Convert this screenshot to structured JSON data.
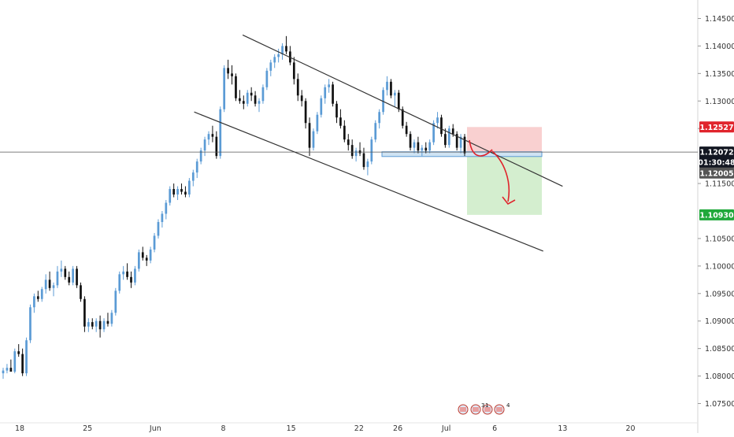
{
  "chart_data": {
    "type": "candlestick",
    "x_ticks": [
      "18",
      "25",
      "Jun",
      "8",
      "15",
      "22",
      "26",
      "Jul",
      "6",
      "13",
      "20"
    ],
    "y_ticks": [
      "1.14500",
      "1.14000",
      "1.13500",
      "1.13000",
      "1.12500",
      "1.11500",
      "1.10500",
      "1.10000",
      "1.09500",
      "1.09000",
      "1.08500",
      "1.08000",
      "1.07500"
    ],
    "ylim": [
      1.0735,
      1.1475
    ],
    "price_labels": {
      "stop": "1.12527",
      "current": "1.12072",
      "countdown": "01:30:48",
      "entry": "1.12005",
      "target": "1.10930"
    },
    "event_markers": {
      "first_count": "3",
      "second_count": "1",
      "third_count": "4"
    },
    "colors": {
      "up": "#5b9bd5",
      "down": "#111111",
      "channel": "#333333",
      "risk_zone": "#f8c8c8",
      "reward_zone": "#cdebc7",
      "arrow": "#e0242c",
      "stop_label": "#e0242c",
      "current_label": "#131722",
      "entry_label": "#555555",
      "target_label": "#1fa83a"
    },
    "channel_lines": [
      {
        "from": [
          "2020-06-10",
          1.142
        ],
        "to": [
          "2020-07-13",
          1.1145
        ]
      },
      {
        "from": [
          "2020-06-05",
          1.128
        ],
        "to": [
          "2020-07-11",
          1.1027
        ]
      }
    ],
    "candles": [
      [
        1.0805,
        1.0815,
        1.0795,
        1.081
      ],
      [
        1.081,
        1.0822,
        1.0805,
        1.0815
      ],
      [
        1.0815,
        1.083,
        1.081,
        1.0808
      ],
      [
        1.0808,
        1.085,
        1.0805,
        1.0845
      ],
      [
        1.0845,
        1.0858,
        1.0835,
        1.084
      ],
      [
        1.084,
        1.085,
        1.08,
        1.0805
      ],
      [
        1.0805,
        1.087,
        1.08,
        1.0865
      ],
      [
        1.0865,
        1.093,
        1.086,
        1.0925
      ],
      [
        1.0925,
        1.095,
        1.0915,
        1.0945
      ],
      [
        1.0945,
        1.0955,
        1.0935,
        1.094
      ],
      [
        1.094,
        1.0962,
        1.0935,
        1.0958
      ],
      [
        1.0958,
        1.0985,
        1.095,
        1.0975
      ],
      [
        1.0975,
        1.099,
        1.0955,
        1.096
      ],
      [
        1.096,
        1.097,
        1.0945,
        1.0965
      ],
      [
        1.0965,
        1.1,
        1.096,
        1.099
      ],
      [
        1.099,
        1.101,
        1.098,
        1.0995
      ],
      [
        1.0995,
        1.1,
        1.0975,
        1.098
      ],
      [
        1.098,
        1.099,
        1.0965,
        1.097
      ],
      [
        1.097,
        1.1,
        1.0965,
        1.0995
      ],
      [
        1.0995,
        1.1,
        1.096,
        1.0965
      ],
      [
        1.0965,
        1.097,
        1.0935,
        1.094
      ],
      [
        1.094,
        1.0945,
        1.088,
        1.089
      ],
      [
        1.089,
        1.0905,
        1.088,
        1.0898
      ],
      [
        1.0898,
        1.0905,
        1.0885,
        1.089
      ],
      [
        1.089,
        1.0905,
        1.088,
        1.09
      ],
      [
        1.09,
        1.091,
        1.087,
        1.0885
      ],
      [
        1.0885,
        1.0905,
        1.088,
        1.09
      ],
      [
        1.09,
        1.0915,
        1.089,
        1.0895
      ],
      [
        1.0895,
        1.092,
        1.089,
        1.0915
      ],
      [
        1.0915,
        1.096,
        1.091,
        1.0955
      ],
      [
        1.0955,
        1.099,
        1.095,
        1.0985
      ],
      [
        1.0985,
        1.1,
        1.0975,
        1.099
      ],
      [
        1.099,
        1.1005,
        1.0975,
        1.098
      ],
      [
        1.098,
        1.099,
        1.096,
        1.097
      ],
      [
        1.097,
        1.1,
        1.0965,
        1.0995
      ],
      [
        1.0995,
        1.103,
        1.099,
        1.1025
      ],
      [
        1.1025,
        1.1035,
        1.101,
        1.1015
      ],
      [
        1.1015,
        1.102,
        1.1,
        1.101
      ],
      [
        1.101,
        1.1035,
        1.1005,
        1.103
      ],
      [
        1.103,
        1.106,
        1.1025,
        1.1055
      ],
      [
        1.1055,
        1.1085,
        1.105,
        1.108
      ],
      [
        1.108,
        1.11,
        1.107,
        1.1095
      ],
      [
        1.1095,
        1.112,
        1.1085,
        1.1115
      ],
      [
        1.1115,
        1.1145,
        1.111,
        1.114
      ],
      [
        1.114,
        1.115,
        1.1125,
        1.113
      ],
      [
        1.113,
        1.1145,
        1.112,
        1.114
      ],
      [
        1.114,
        1.115,
        1.113,
        1.1135
      ],
      [
        1.1135,
        1.1145,
        1.1125,
        1.113
      ],
      [
        1.113,
        1.116,
        1.1125,
        1.1155
      ],
      [
        1.1155,
        1.1175,
        1.1145,
        1.117
      ],
      [
        1.117,
        1.1195,
        1.116,
        1.119
      ],
      [
        1.119,
        1.1215,
        1.1185,
        1.121
      ],
      [
        1.121,
        1.1235,
        1.12,
        1.123
      ],
      [
        1.123,
        1.1245,
        1.122,
        1.124
      ],
      [
        1.124,
        1.1255,
        1.1225,
        1.1235
      ],
      [
        1.1235,
        1.1245,
        1.1195,
        1.12
      ],
      [
        1.12,
        1.129,
        1.1195,
        1.1285
      ],
      [
        1.1285,
        1.1365,
        1.128,
        1.136
      ],
      [
        1.136,
        1.1375,
        1.134,
        1.135
      ],
      [
        1.135,
        1.1365,
        1.133,
        1.1345
      ],
      [
        1.1345,
        1.135,
        1.13,
        1.1305
      ],
      [
        1.1305,
        1.132,
        1.1295,
        1.13
      ],
      [
        1.13,
        1.131,
        1.1285,
        1.1295
      ],
      [
        1.1295,
        1.132,
        1.129,
        1.1315
      ],
      [
        1.1315,
        1.1325,
        1.13,
        1.131
      ],
      [
        1.131,
        1.1318,
        1.129,
        1.1295
      ],
      [
        1.1295,
        1.1305,
        1.128,
        1.13
      ],
      [
        1.13,
        1.133,
        1.1295,
        1.1325
      ],
      [
        1.1325,
        1.136,
        1.132,
        1.1355
      ],
      [
        1.1355,
        1.1375,
        1.1345,
        1.137
      ],
      [
        1.137,
        1.1385,
        1.136,
        1.138
      ],
      [
        1.138,
        1.1395,
        1.137,
        1.1385
      ],
      [
        1.1385,
        1.1405,
        1.1375,
        1.14
      ],
      [
        1.14,
        1.1418,
        1.1385,
        1.139
      ],
      [
        1.139,
        1.14,
        1.1365,
        1.137
      ],
      [
        1.137,
        1.138,
        1.133,
        1.134
      ],
      [
        1.134,
        1.135,
        1.13,
        1.131
      ],
      [
        1.131,
        1.132,
        1.129,
        1.13
      ],
      [
        1.13,
        1.1305,
        1.125,
        1.126
      ],
      [
        1.126,
        1.127,
        1.12,
        1.1215
      ],
      [
        1.1215,
        1.125,
        1.121,
        1.1245
      ],
      [
        1.1245,
        1.128,
        1.124,
        1.1275
      ],
      [
        1.1275,
        1.131,
        1.127,
        1.1305
      ],
      [
        1.1305,
        1.133,
        1.1295,
        1.1325
      ],
      [
        1.1325,
        1.134,
        1.1315,
        1.133
      ],
      [
        1.133,
        1.1335,
        1.129,
        1.1295
      ],
      [
        1.1295,
        1.13,
        1.126,
        1.127
      ],
      [
        1.127,
        1.1285,
        1.125,
        1.1255
      ],
      [
        1.1255,
        1.1265,
        1.1225,
        1.123
      ],
      [
        1.123,
        1.124,
        1.121,
        1.122
      ],
      [
        1.122,
        1.123,
        1.1195,
        1.12
      ],
      [
        1.12,
        1.1215,
        1.119,
        1.121
      ],
      [
        1.121,
        1.1225,
        1.12,
        1.1205
      ],
      [
        1.1205,
        1.1215,
        1.1175,
        1.118
      ],
      [
        1.118,
        1.1195,
        1.1165,
        1.119
      ],
      [
        1.119,
        1.1235,
        1.1185,
        1.123
      ],
      [
        1.123,
        1.1265,
        1.1225,
        1.126
      ],
      [
        1.126,
        1.1285,
        1.125,
        1.128
      ],
      [
        1.128,
        1.1325,
        1.1275,
        1.132
      ],
      [
        1.132,
        1.1345,
        1.131,
        1.1335
      ],
      [
        1.1335,
        1.134,
        1.1305,
        1.131
      ],
      [
        1.131,
        1.132,
        1.129,
        1.1315
      ],
      [
        1.1315,
        1.132,
        1.128,
        1.1285
      ],
      [
        1.1285,
        1.129,
        1.125,
        1.1255
      ],
      [
        1.1255,
        1.1262,
        1.1235,
        1.124
      ],
      [
        1.124,
        1.1245,
        1.121,
        1.1215
      ],
      [
        1.1215,
        1.123,
        1.1205,
        1.1225
      ],
      [
        1.1225,
        1.1235,
        1.1205,
        1.121
      ],
      [
        1.121,
        1.122,
        1.12,
        1.1215
      ],
      [
        1.1215,
        1.1225,
        1.1205,
        1.121
      ],
      [
        1.121,
        1.123,
        1.1205,
        1.1225
      ],
      [
        1.1225,
        1.1265,
        1.122,
        1.126
      ],
      [
        1.126,
        1.128,
        1.125,
        1.127
      ],
      [
        1.127,
        1.1275,
        1.1235,
        1.124
      ],
      [
        1.124,
        1.125,
        1.1215,
        1.122
      ],
      [
        1.122,
        1.1255,
        1.1215,
        1.125
      ],
      [
        1.125,
        1.1258,
        1.1235,
        1.124
      ],
      [
        1.124,
        1.1245,
        1.121,
        1.1215
      ],
      [
        1.1215,
        1.124,
        1.1205,
        1.1235
      ],
      [
        1.1235,
        1.124,
        1.12,
        1.1205
      ]
    ]
  }
}
